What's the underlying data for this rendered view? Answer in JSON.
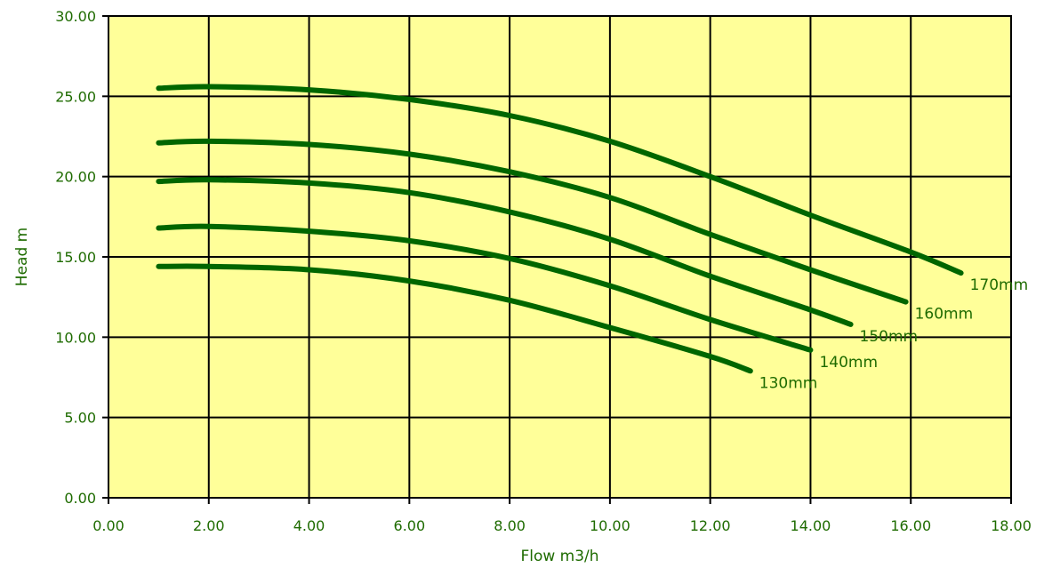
{
  "colors": {
    "plot_background": "#ffff99",
    "grid": "#000000",
    "series": "#006600",
    "text": "#1e6b00",
    "page_background": "#ffffff"
  },
  "chart_data": {
    "type": "line",
    "title": "",
    "xlabel": "Flow m3/h",
    "ylabel": "Head m",
    "xlim": [
      0,
      18
    ],
    "ylim": [
      0,
      30
    ],
    "x_ticks": [
      0,
      2,
      4,
      6,
      8,
      10,
      12,
      14,
      16,
      18
    ],
    "y_ticks": [
      0,
      5,
      10,
      15,
      20,
      25,
      30
    ],
    "x_tick_labels": [
      "0.00",
      "2.00",
      "4.00",
      "6.00",
      "8.00",
      "10.00",
      "12.00",
      "14.00",
      "16.00",
      "18.00"
    ],
    "y_tick_labels": [
      "0.00",
      "5.00",
      "10.00",
      "15.00",
      "20.00",
      "25.00",
      "30.00"
    ],
    "grid": true,
    "legend": "none",
    "series": [
      {
        "name": "170mm",
        "x": [
          1,
          2,
          4,
          6,
          8,
          10,
          12,
          14,
          16,
          17
        ],
        "y": [
          25.5,
          25.6,
          25.4,
          24.8,
          23.8,
          22.2,
          20.0,
          17.6,
          15.3,
          14.0
        ]
      },
      {
        "name": "160mm",
        "x": [
          1,
          2,
          4,
          6,
          8,
          10,
          12,
          14,
          15.9
        ],
        "y": [
          22.1,
          22.2,
          22.0,
          21.4,
          20.3,
          18.7,
          16.4,
          14.2,
          12.2
        ]
      },
      {
        "name": "150mm",
        "x": [
          1,
          2,
          4,
          6,
          8,
          10,
          12,
          14,
          14.8
        ],
        "y": [
          19.7,
          19.8,
          19.6,
          19.0,
          17.8,
          16.1,
          13.8,
          11.7,
          10.8
        ]
      },
      {
        "name": "140mm",
        "x": [
          1,
          2,
          4,
          6,
          8,
          10,
          12,
          14
        ],
        "y": [
          16.8,
          16.9,
          16.6,
          16.0,
          14.9,
          13.2,
          11.1,
          9.2
        ]
      },
      {
        "name": "130mm",
        "x": [
          1,
          2,
          4,
          6,
          8,
          10,
          12,
          12.8
        ],
        "y": [
          14.4,
          14.4,
          14.2,
          13.5,
          12.3,
          10.6,
          8.8,
          7.9
        ]
      }
    ]
  }
}
